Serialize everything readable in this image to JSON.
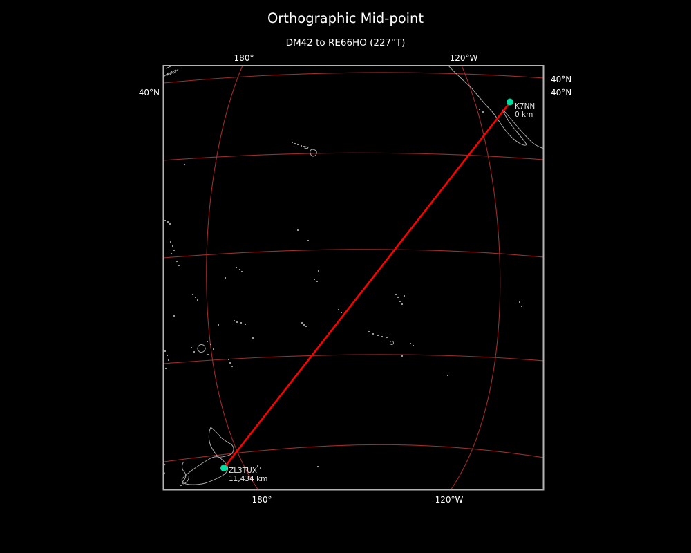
{
  "title": "Orthographic Mid-point",
  "subtitle": "DM42 to RE66HO (227°T)",
  "map": {
    "projection": "Orthographic",
    "axis_labels": {
      "top": [
        "180°",
        "120°W"
      ],
      "bottom": [
        "180°",
        "120°W"
      ],
      "left": [
        "40°N"
      ],
      "right": [
        "40°N",
        "40°N"
      ]
    },
    "stations": [
      {
        "callsign": "K7NN",
        "distance": "0 km"
      },
      {
        "callsign": "ZL3TUX",
        "distance": "11,434 km"
      }
    ],
    "colors": {
      "background": "#000000",
      "frame": "#b3b3b3",
      "graticule": "#a02c2c",
      "coastline": "#a9a9a9",
      "path": "#fe0000",
      "marker": "#00dfa2",
      "text": "#ffffff"
    }
  }
}
